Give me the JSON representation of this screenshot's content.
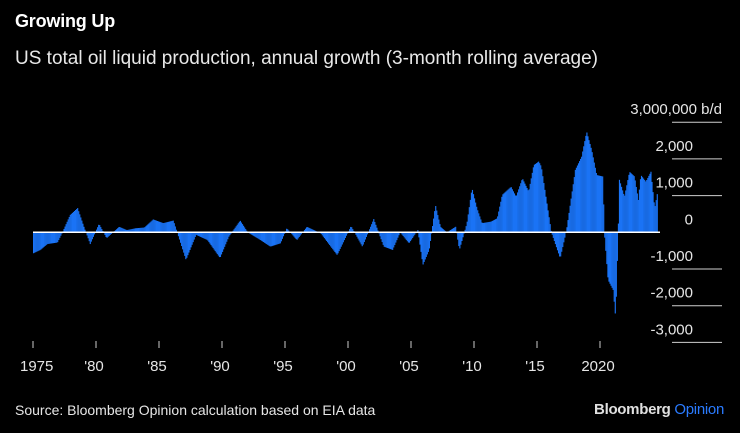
{
  "header": {
    "title": "Growing Up",
    "subtitle": "US total oil liquid production, annual growth (3-month rolling average)"
  },
  "footer": {
    "source": "Source: Bloomberg Opinion calculation based on EIA data",
    "logo_brand": "Bloomberg",
    "logo_product": "Opinion"
  },
  "colors": {
    "bar": "#1a73f5",
    "zero_line": "#ffffff",
    "grid": "#ffffff",
    "background": "#000000",
    "logo_accent": "#2a7bff"
  },
  "chart_data": {
    "type": "bar",
    "title": "Growing Up",
    "subtitle": "US total oil liquid production, annual growth (3-month rolling average)",
    "unit_label": "3,000,000 b/d",
    "ylim": [
      -3000,
      3000
    ],
    "xlim": [
      1975,
      2024.5
    ],
    "y_ticks": [
      {
        "value": 3000,
        "label": "3,000,000 b/d"
      },
      {
        "value": 2000,
        "label": "2,000"
      },
      {
        "value": 1000,
        "label": "1,000"
      },
      {
        "value": 0,
        "label": "0"
      },
      {
        "value": -1000,
        "label": "-1,000"
      },
      {
        "value": -2000,
        "label": "-2,000"
      },
      {
        "value": -3000,
        "label": "-3,000"
      }
    ],
    "x_ticks": [
      {
        "value": 1975,
        "label": "1975"
      },
      {
        "value": 1980,
        "label": "'80"
      },
      {
        "value": 1985,
        "label": "'85"
      },
      {
        "value": 1990,
        "label": "'90"
      },
      {
        "value": 1995,
        "label": "'95"
      },
      {
        "value": 2000,
        "label": "'00"
      },
      {
        "value": 2005,
        "label": "'05"
      },
      {
        "value": 2010,
        "label": "'10"
      },
      {
        "value": 2015,
        "label": "'15"
      },
      {
        "value": 2020,
        "label": "2020"
      }
    ],
    "y_axis_position": "right",
    "grid": false,
    "series": [
      {
        "points": [
          [
            1975.0,
            -570
          ],
          [
            1975.55,
            -480
          ],
          [
            1976.1,
            -320
          ],
          [
            1976.9,
            -280
          ],
          [
            1977.3,
            0
          ],
          [
            1977.9,
            470
          ],
          [
            1978.5,
            660
          ],
          [
            1979.0,
            150
          ],
          [
            1979.5,
            -320
          ],
          [
            1980.2,
            230
          ],
          [
            1980.8,
            -160
          ],
          [
            1981.8,
            150
          ],
          [
            1982.4,
            60
          ],
          [
            1983.1,
            110
          ],
          [
            1983.8,
            130
          ],
          [
            1984.5,
            350
          ],
          [
            1985.3,
            250
          ],
          [
            1986.1,
            320
          ],
          [
            1986.4,
            0
          ],
          [
            1987.1,
            -750
          ],
          [
            1987.9,
            -70
          ],
          [
            1988.8,
            -210
          ],
          [
            1989.8,
            -700
          ],
          [
            1990.5,
            -120
          ],
          [
            1991.4,
            320
          ],
          [
            1992.0,
            0
          ],
          [
            1993.0,
            -210
          ],
          [
            1993.8,
            -390
          ],
          [
            1994.6,
            -300
          ],
          [
            1995.1,
            110
          ],
          [
            1995.9,
            -210
          ],
          [
            1996.7,
            150
          ],
          [
            1997.8,
            -30
          ],
          [
            1999.1,
            -620
          ],
          [
            2000.2,
            170
          ],
          [
            2001.1,
            -390
          ],
          [
            2002.0,
            360
          ],
          [
            2002.8,
            -390
          ],
          [
            2003.5,
            -480
          ],
          [
            2004.1,
            0
          ],
          [
            2004.8,
            -300
          ],
          [
            2005.5,
            60
          ],
          [
            2005.9,
            -890
          ],
          [
            2006.4,
            -480
          ],
          [
            2006.9,
            740
          ],
          [
            2007.3,
            150
          ],
          [
            2007.8,
            0
          ],
          [
            2008.5,
            150
          ],
          [
            2008.8,
            -480
          ],
          [
            2009.4,
            250
          ],
          [
            2009.8,
            1200
          ],
          [
            2010.2,
            650
          ],
          [
            2010.6,
            250
          ],
          [
            2011.3,
            290
          ],
          [
            2011.8,
            380
          ],
          [
            2012.2,
            1020
          ],
          [
            2012.9,
            1240
          ],
          [
            2013.3,
            970
          ],
          [
            2013.8,
            1470
          ],
          [
            2014.3,
            1110
          ],
          [
            2014.7,
            1830
          ],
          [
            2015.1,
            1930
          ],
          [
            2015.3,
            1790
          ],
          [
            2016.1,
            0
          ],
          [
            2016.8,
            -710
          ],
          [
            2017.3,
            60
          ],
          [
            2018.0,
            1700
          ],
          [
            2018.5,
            2060
          ],
          [
            2018.9,
            2740
          ],
          [
            2019.3,
            2240
          ],
          [
            2019.7,
            1560
          ],
          [
            2020.2,
            1520
          ],
          [
            2020.3,
            0
          ],
          [
            2020.6,
            -1300
          ],
          [
            2021.0,
            -1570
          ],
          [
            2021.2,
            -2340
          ],
          [
            2021.4,
            0
          ],
          [
            2021.5,
            1430
          ],
          [
            2021.9,
            970
          ],
          [
            2022.3,
            1650
          ],
          [
            2022.7,
            1520
          ],
          [
            2023.0,
            880
          ],
          [
            2023.2,
            1560
          ],
          [
            2023.6,
            1380
          ],
          [
            2024.0,
            1650
          ],
          [
            2024.3,
            650
          ],
          [
            2024.5,
            1040
          ]
        ]
      }
    ]
  }
}
